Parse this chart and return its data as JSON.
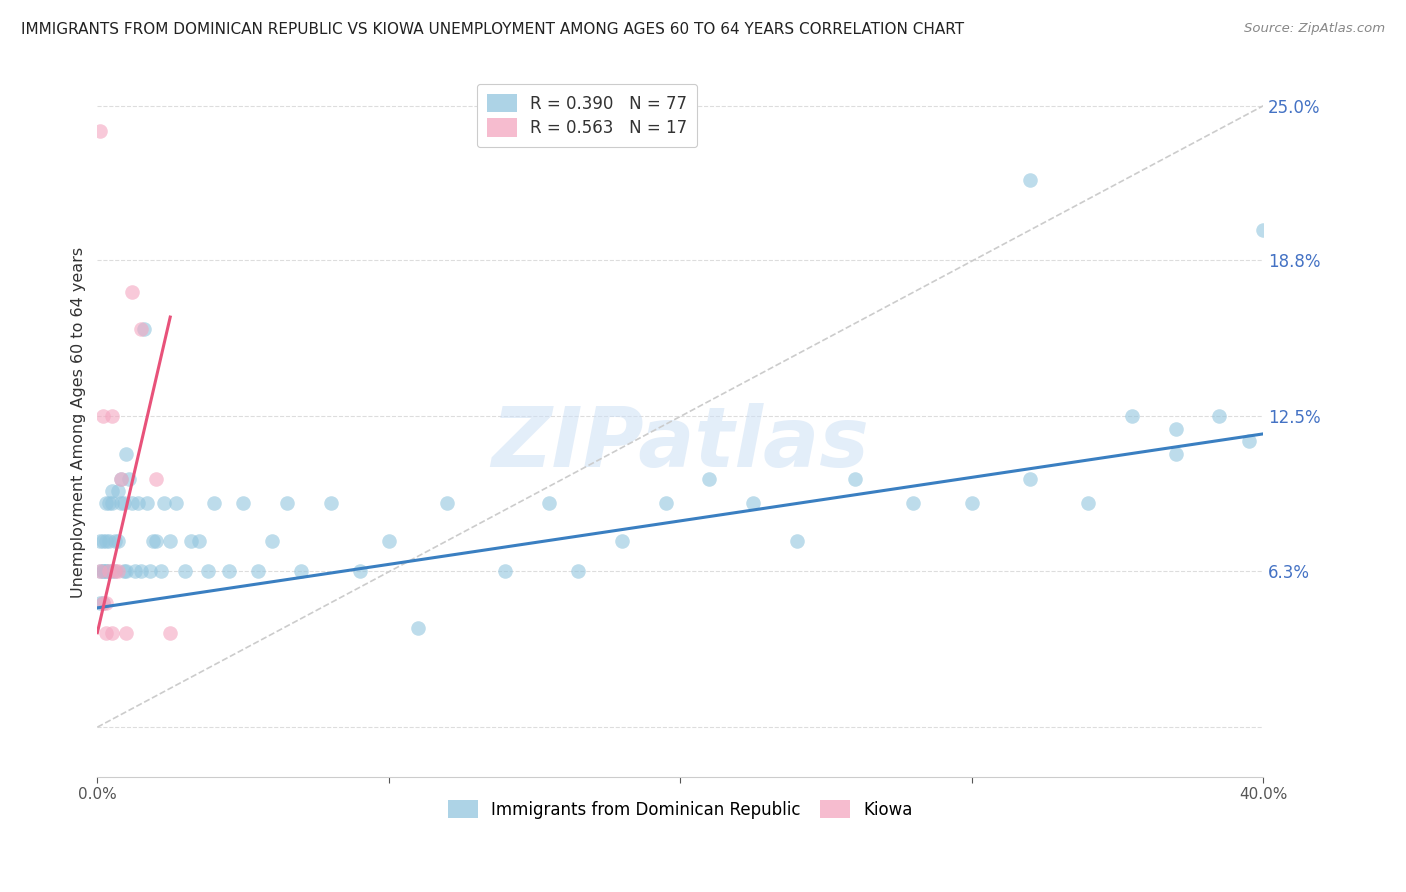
{
  "title": "IMMIGRANTS FROM DOMINICAN REPUBLIC VS KIOWA UNEMPLOYMENT AMONG AGES 60 TO 64 YEARS CORRELATION CHART",
  "source": "Source: ZipAtlas.com",
  "ylabel": "Unemployment Among Ages 60 to 64 years",
  "xlim": [
    0.0,
    0.4
  ],
  "ylim": [
    -0.02,
    0.265
  ],
  "yticks": [
    0.0,
    0.063,
    0.125,
    0.188,
    0.25
  ],
  "ytick_labels": [
    "",
    "6.3%",
    "12.5%",
    "18.8%",
    "25.0%"
  ],
  "xticks": [
    0.0,
    0.1,
    0.2,
    0.3,
    0.4
  ],
  "xtick_labels": [
    "0.0%",
    "",
    "",
    "",
    "40.0%"
  ],
  "legend_r1": "R = 0.390",
  "legend_n1": "N = 77",
  "legend_r2": "R = 0.563",
  "legend_n2": "N = 17",
  "blue_color": "#92c5de",
  "pink_color": "#f4a6c0",
  "blue_line_color": "#3a7fc1",
  "pink_line_color": "#e8527a",
  "watermark_text": "ZIPatlas",
  "blue_points_x": [
    0.001,
    0.001,
    0.001,
    0.002,
    0.002,
    0.002,
    0.002,
    0.003,
    0.003,
    0.003,
    0.003,
    0.004,
    0.004,
    0.004,
    0.005,
    0.005,
    0.005,
    0.006,
    0.006,
    0.007,
    0.007,
    0.008,
    0.008,
    0.009,
    0.009,
    0.01,
    0.01,
    0.011,
    0.012,
    0.013,
    0.014,
    0.015,
    0.016,
    0.017,
    0.018,
    0.019,
    0.02,
    0.022,
    0.023,
    0.025,
    0.027,
    0.03,
    0.032,
    0.035,
    0.038,
    0.04,
    0.045,
    0.05,
    0.055,
    0.06,
    0.065,
    0.07,
    0.08,
    0.09,
    0.1,
    0.11,
    0.12,
    0.14,
    0.155,
    0.165,
    0.18,
    0.195,
    0.21,
    0.225,
    0.24,
    0.26,
    0.28,
    0.3,
    0.32,
    0.34,
    0.355,
    0.37,
    0.385,
    0.395,
    0.4,
    0.37,
    0.32
  ],
  "blue_points_y": [
    0.063,
    0.075,
    0.05,
    0.063,
    0.075,
    0.063,
    0.05,
    0.075,
    0.063,
    0.09,
    0.063,
    0.09,
    0.063,
    0.075,
    0.09,
    0.063,
    0.095,
    0.063,
    0.075,
    0.075,
    0.095,
    0.09,
    0.1,
    0.063,
    0.09,
    0.11,
    0.063,
    0.1,
    0.09,
    0.063,
    0.09,
    0.063,
    0.16,
    0.09,
    0.063,
    0.075,
    0.075,
    0.063,
    0.09,
    0.075,
    0.09,
    0.063,
    0.075,
    0.075,
    0.063,
    0.09,
    0.063,
    0.09,
    0.063,
    0.075,
    0.09,
    0.063,
    0.09,
    0.063,
    0.075,
    0.04,
    0.09,
    0.063,
    0.09,
    0.063,
    0.075,
    0.09,
    0.1,
    0.09,
    0.075,
    0.1,
    0.09,
    0.09,
    0.1,
    0.09,
    0.125,
    0.12,
    0.125,
    0.115,
    0.2,
    0.11,
    0.22
  ],
  "pink_points_x": [
    0.001,
    0.001,
    0.002,
    0.002,
    0.003,
    0.003,
    0.004,
    0.005,
    0.005,
    0.006,
    0.007,
    0.008,
    0.01,
    0.012,
    0.015,
    0.02,
    0.025
  ],
  "pink_points_y": [
    0.24,
    0.063,
    0.125,
    0.05,
    0.05,
    0.038,
    0.063,
    0.038,
    0.125,
    0.063,
    0.063,
    0.1,
    0.038,
    0.175,
    0.16,
    0.1,
    0.038
  ],
  "blue_trendline": [
    0.0,
    0.4,
    0.048,
    0.118
  ],
  "pink_trendline": [
    0.0,
    0.025,
    0.038,
    0.165
  ],
  "diag_line": [
    0.0,
    0.4,
    0.0,
    0.25
  ]
}
